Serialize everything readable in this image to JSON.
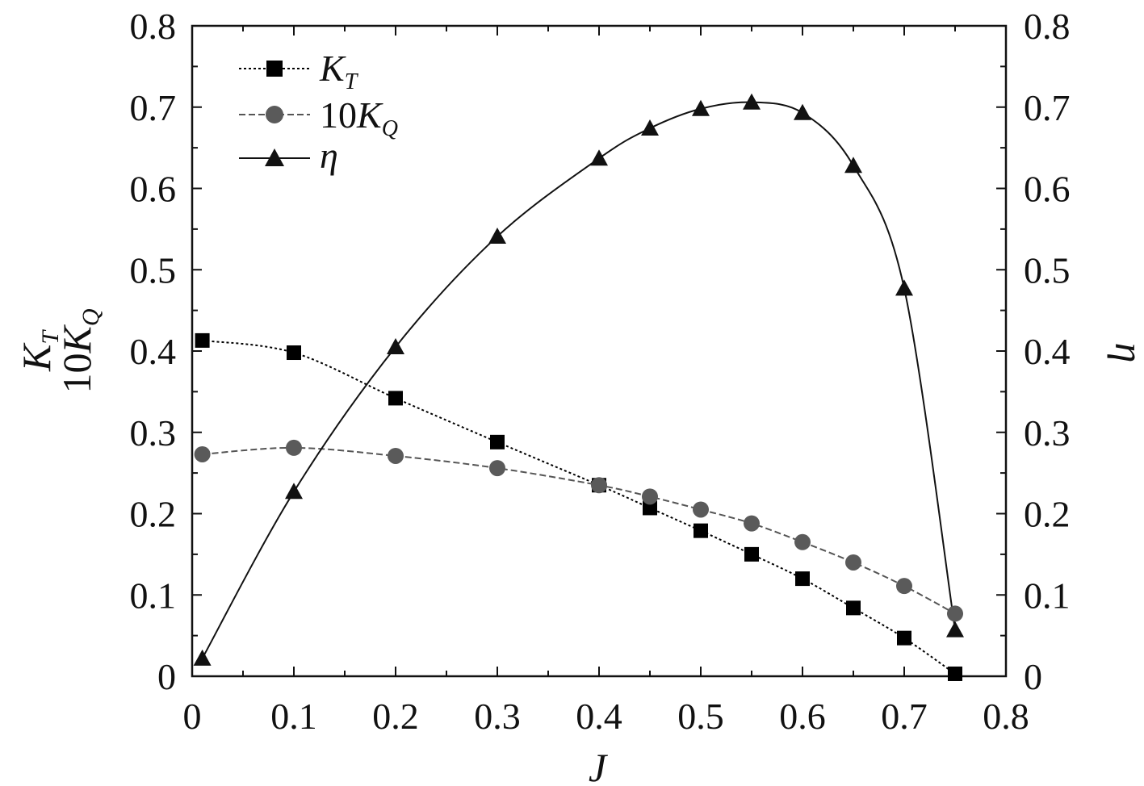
{
  "chart_data": {
    "type": "line",
    "xlabel": "J",
    "ylabel_left": {
      "line1_main": "K",
      "line1_sub": "T",
      "line2_prefix": "10",
      "line2_main": "K",
      "line2_sub": "Q"
    },
    "ylabel_right": "η",
    "xlim": [
      0,
      0.8
    ],
    "ylim_left": [
      0,
      0.8
    ],
    "ylim_right": [
      0,
      0.8
    ],
    "x_ticks": [
      "0",
      "0.1",
      "0.2",
      "0.3",
      "0.4",
      "0.5",
      "0.6",
      "0.7",
      "0.8"
    ],
    "y_ticks_left": [
      "0",
      "0.1",
      "0.2",
      "0.3",
      "0.4",
      "0.5",
      "0.6",
      "0.7",
      "0.8"
    ],
    "y_ticks_right": [
      "0",
      "0.1",
      "0.2",
      "0.3",
      "0.4",
      "0.5",
      "0.6",
      "0.7",
      "0.8"
    ],
    "grid": false,
    "legend_position": "top-left",
    "series": [
      {
        "key": "KT",
        "name_main": "K",
        "name_sub": "T",
        "marker": "square",
        "line_style": "dotted",
        "color": "#000000",
        "x": [
          0.01,
          0.1,
          0.2,
          0.3,
          0.4,
          0.45,
          0.5,
          0.55,
          0.6,
          0.65,
          0.7,
          0.75
        ],
        "y": [
          0.413,
          0.398,
          0.342,
          0.288,
          0.235,
          0.207,
          0.179,
          0.15,
          0.12,
          0.084,
          0.047,
          0.003
        ]
      },
      {
        "key": "10KQ",
        "name_prefix": "10",
        "name_main": "K",
        "name_sub": "Q",
        "marker": "circle",
        "line_style": "dashed",
        "color": "#555555",
        "x": [
          0.01,
          0.1,
          0.2,
          0.3,
          0.4,
          0.45,
          0.5,
          0.55,
          0.6,
          0.65,
          0.7,
          0.75
        ],
        "y": [
          0.273,
          0.281,
          0.271,
          0.256,
          0.235,
          0.221,
          0.205,
          0.188,
          0.165,
          0.14,
          0.111,
          0.077
        ]
      },
      {
        "key": "eta",
        "name_main": "η",
        "marker": "triangle",
        "line_style": "solid",
        "color": "#111111",
        "x": [
          0.01,
          0.1,
          0.2,
          0.3,
          0.4,
          0.45,
          0.5,
          0.55,
          0.6,
          0.65,
          0.7,
          0.75
        ],
        "y": [
          0.022,
          0.227,
          0.405,
          0.541,
          0.637,
          0.674,
          0.698,
          0.706,
          0.693,
          0.628,
          0.477,
          0.057
        ]
      }
    ]
  }
}
